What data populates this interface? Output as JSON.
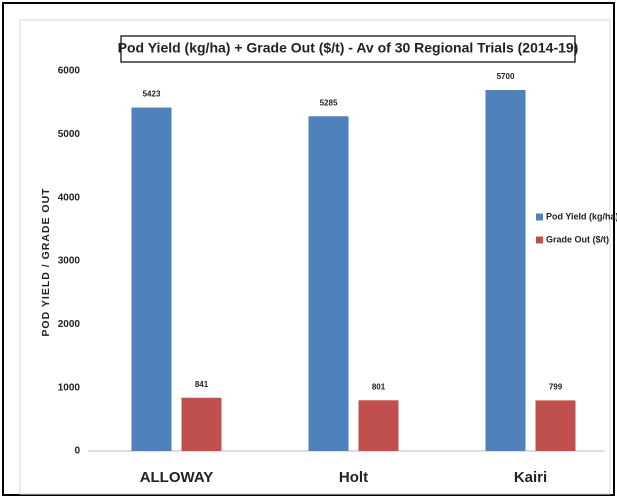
{
  "chart_data": {
    "type": "bar",
    "title": "Pod Yield (kg/ha) + Grade Out ($/t) - Av of 30 Regional Trials (2014-19)",
    "y_axis_label": "POD YIELD / GRADE OUT",
    "categories": [
      "ALLOWAY",
      "Holt",
      "Kairi"
    ],
    "series": [
      {
        "name": "Pod Yield (kg/ha)",
        "color": "#4f81bd",
        "values": [
          5423,
          5285,
          5700
        ]
      },
      {
        "name": "Grade Out ($/t)",
        "color": "#c0504d",
        "values": [
          841,
          801,
          799
        ]
      }
    ],
    "ylim": [
      0,
      6000
    ],
    "yticks": [
      0,
      1000,
      2000,
      3000,
      4000,
      5000,
      6000
    ],
    "grid": false,
    "legend": "right"
  }
}
